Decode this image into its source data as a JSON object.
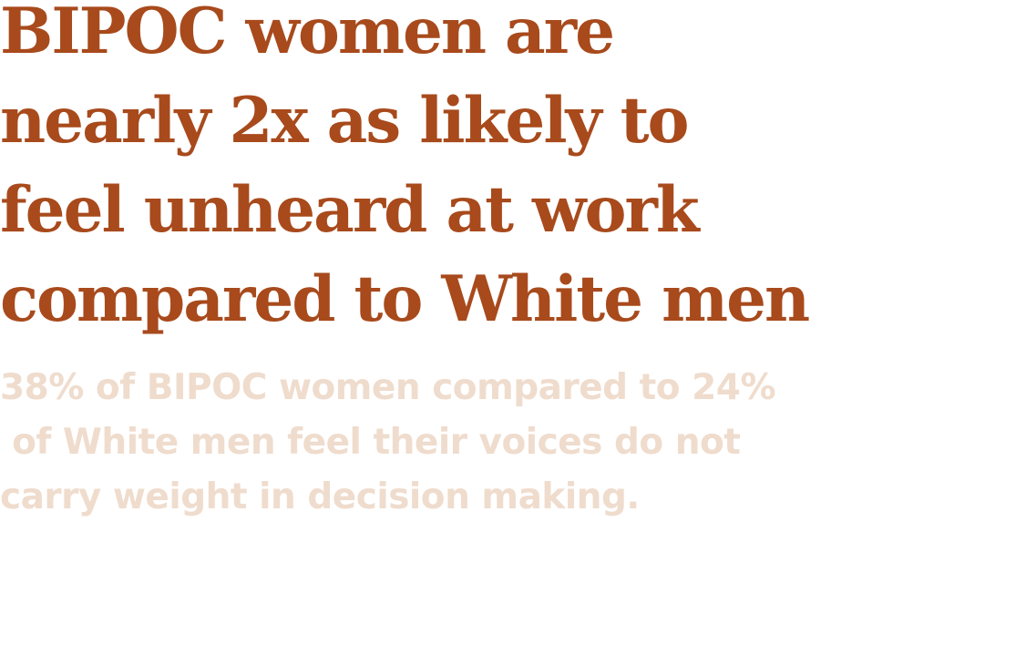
{
  "headline": {
    "lines": [
      "BIPOC women are",
      "nearly 2x as likely to",
      "feel unheard at work",
      "compared to White men"
    ]
  },
  "subtext": {
    "lines": [
      "38% of BIPOC women compared to 24%",
      " of White men feel their voices do not",
      "carry weight in decision making."
    ]
  },
  "colors": {
    "headline": "#a84a1c",
    "subtext": "#efdccd",
    "background": "#ffffff"
  }
}
